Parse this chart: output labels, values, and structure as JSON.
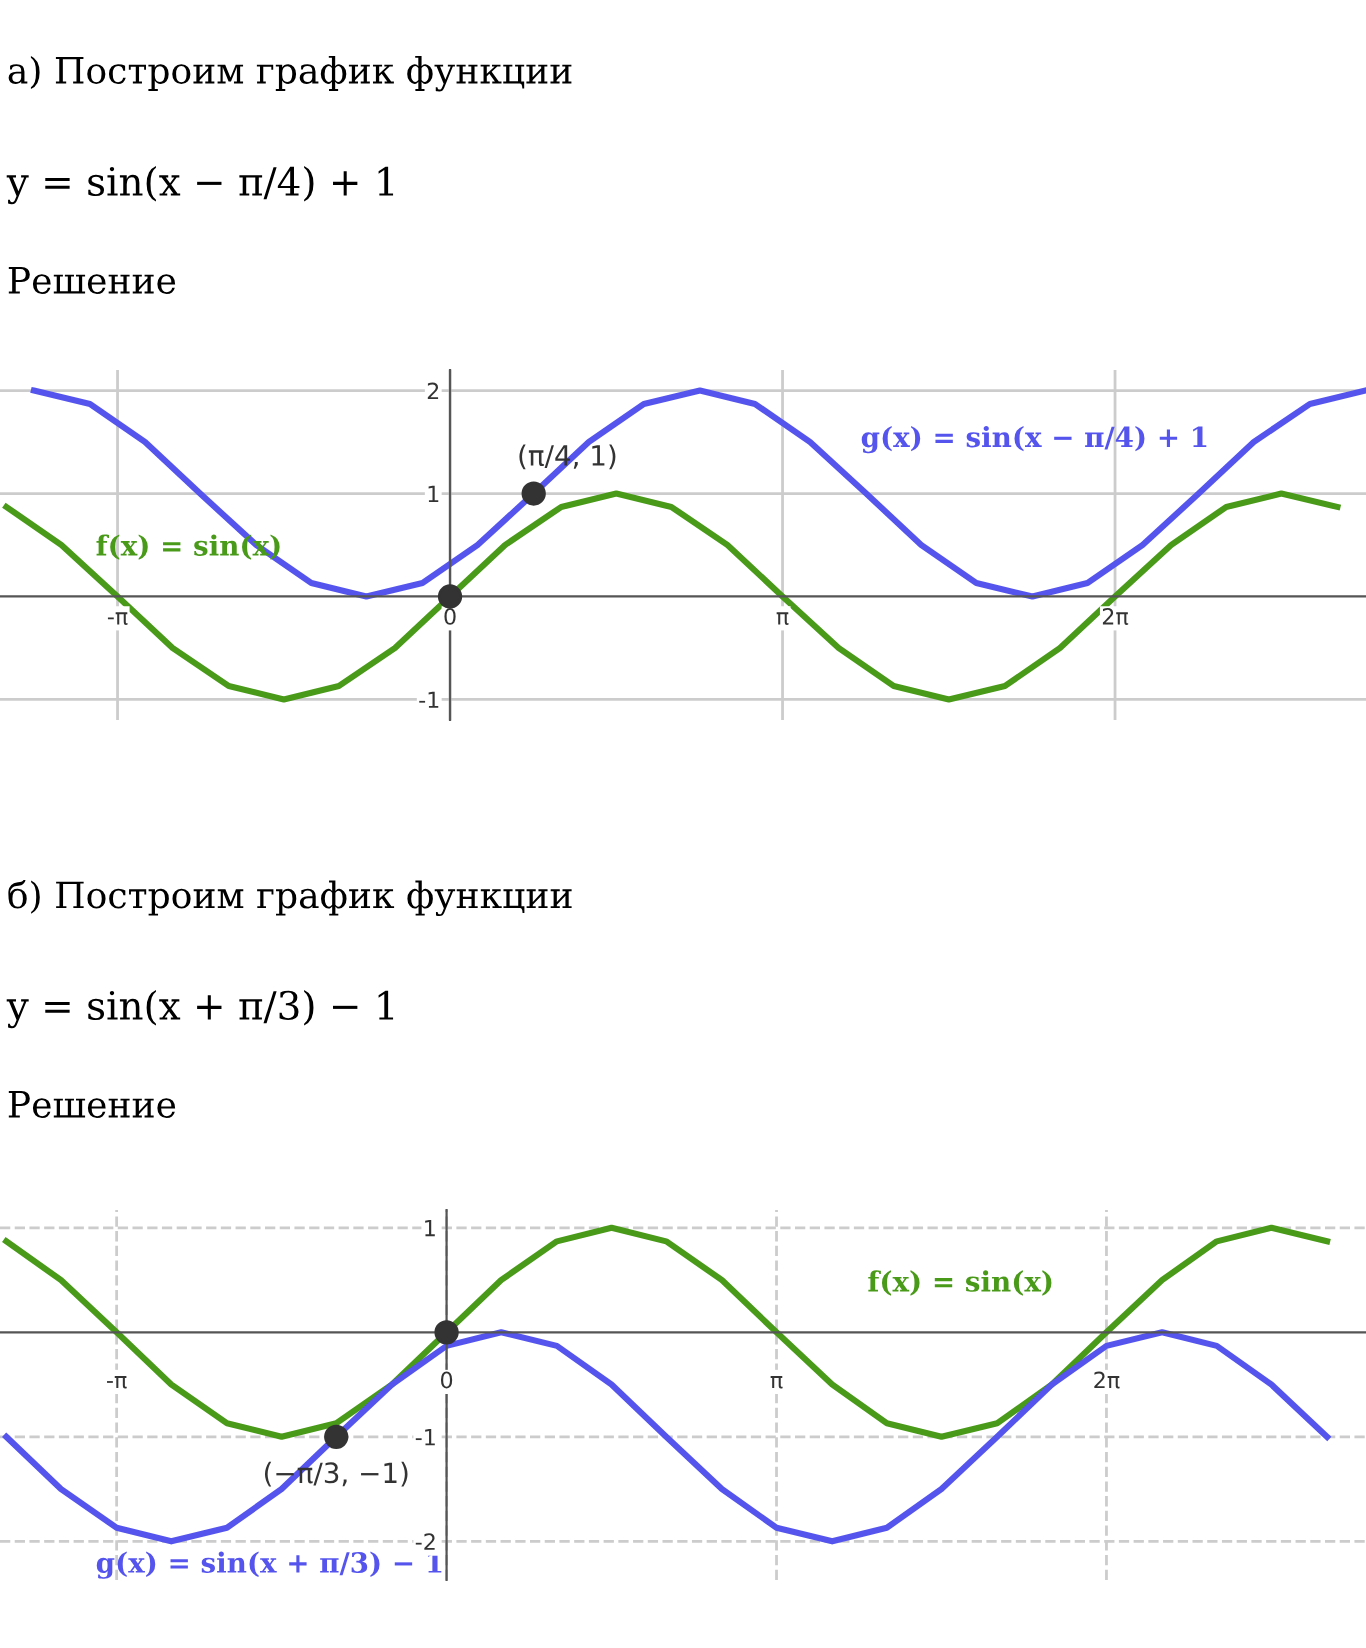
{
  "chart_data": [
    {
      "type": "line",
      "title": "а) Построим график функции",
      "subtitle": "y = sin(x − π/4) + 1",
      "annotations": [
        "Решение",
        {
          "text": "(π/4, 1)",
          "x": 0.79,
          "y": 1
        }
      ],
      "xlim": [
        -4.25,
        8.65
      ],
      "ylim": [
        -1.2,
        2.2
      ],
      "xticks": [
        {
          "value": -3.14,
          "label": "-π"
        },
        0,
        {
          "value": 3.14,
          "label": "π"
        },
        {
          "value": 6.28,
          "label": "2π"
        }
      ],
      "yticks": [
        -1,
        1,
        2
      ],
      "grid": true,
      "series": [
        {
          "name": "g(x) = sin(x − π/4) + 1",
          "color": "#5555ee",
          "x": [
            -3.93,
            -3.4,
            -2.88,
            -2.36,
            -1.83,
            -1.31,
            -0.79,
            -0.26,
            0.26,
            0.79,
            1.31,
            1.83,
            2.36,
            2.88,
            3.4,
            3.93,
            4.45,
            4.97,
            5.5,
            6.02,
            6.54,
            7.07,
            7.59,
            8.12,
            8.64
          ],
          "values": [
            2,
            1.87,
            1.5,
            1,
            0.5,
            0.13,
            0,
            0.13,
            0.5,
            1,
            1.5,
            1.87,
            2,
            1.87,
            1.5,
            1,
            0.5,
            0.13,
            0,
            0.13,
            0.5,
            1,
            1.5,
            1.87,
            2
          ]
        },
        {
          "name": "f(x) = sin(x)",
          "color": "#4a9a1a",
          "x": [
            -4.19,
            -3.67,
            -3.14,
            -2.62,
            -2.09,
            -1.57,
            -1.05,
            -0.52,
            0,
            0.52,
            1.05,
            1.57,
            2.09,
            2.62,
            3.14,
            3.67,
            4.19,
            4.71,
            5.24,
            5.76,
            6.28,
            6.81,
            7.33,
            7.85,
            8.38
          ],
          "values": [
            0.87,
            0.5,
            0,
            -0.5,
            -0.87,
            -1,
            -0.87,
            -0.5,
            0,
            0.5,
            0.87,
            1,
            0.87,
            0.5,
            0,
            -0.5,
            -0.87,
            -1,
            -0.87,
            -0.5,
            0,
            0.5,
            0.87,
            1,
            0.87
          ]
        },
        {
          "type": "scatter",
          "color": "#333333",
          "x": [
            0,
            0.79
          ],
          "values": [
            0,
            1
          ]
        }
      ]
    },
    {
      "type": "line",
      "title": "б) Построим график функции",
      "subtitle": "y = sin(x + π/3) − 1",
      "annotations": [
        "Решение",
        {
          "text": "(−π/3, −1)",
          "x": -1.05,
          "y": -1
        }
      ],
      "xlim": [
        -4.25,
        8.75
      ],
      "ylim": [
        -2.37,
        1.17
      ],
      "xticks": [
        {
          "value": -3.14,
          "label": "-π"
        },
        0,
        {
          "value": 3.14,
          "label": "π"
        },
        {
          "value": 6.28,
          "label": "2π"
        }
      ],
      "yticks": [
        -2,
        -1,
        1
      ],
      "grid": true,
      "series": [
        {
          "name": "f(x) = sin(x)",
          "color": "#4a9a1a",
          "x": [
            -4.19,
            -3.67,
            -3.14,
            -2.62,
            -2.09,
            -1.57,
            -1.05,
            -0.52,
            0,
            0.52,
            1.05,
            1.57,
            2.09,
            2.62,
            3.14,
            3.67,
            4.19,
            4.71,
            5.24,
            5.76,
            6.28,
            6.81,
            7.33,
            7.85,
            8.38
          ],
          "values": [
            0.87,
            0.5,
            0,
            -0.5,
            -0.87,
            -1,
            -0.87,
            -0.5,
            0,
            0.5,
            0.87,
            1,
            0.87,
            0.5,
            0,
            -0.5,
            -0.87,
            -1,
            -0.87,
            -0.5,
            0,
            0.5,
            0.87,
            1,
            0.87
          ]
        },
        {
          "name": "g(x) = sin(x + π/3) − 1",
          "color": "#5555ee",
          "x": [
            -4.19,
            -3.67,
            -3.14,
            -2.62,
            -2.09,
            -1.57,
            -1.05,
            -0.52,
            0,
            0.52,
            1.05,
            1.57,
            2.09,
            2.62,
            3.14,
            3.67,
            4.19,
            4.71,
            5.24,
            5.76,
            6.28,
            6.81,
            7.33,
            7.85,
            8.38
          ],
          "values": [
            -1,
            -1.5,
            -1.87,
            -2,
            -1.87,
            -1.5,
            -1,
            -0.5,
            -0.13,
            0,
            -0.13,
            -0.5,
            -1,
            -1.5,
            -1.87,
            -2,
            -1.87,
            -1.5,
            -1,
            -0.5,
            -0.13,
            0,
            -0.13,
            -0.5,
            -1
          ]
        },
        {
          "type": "scatter",
          "color": "#333333",
          "x": [
            0,
            -1.05
          ],
          "values": [
            0,
            -1
          ]
        }
      ]
    }
  ]
}
